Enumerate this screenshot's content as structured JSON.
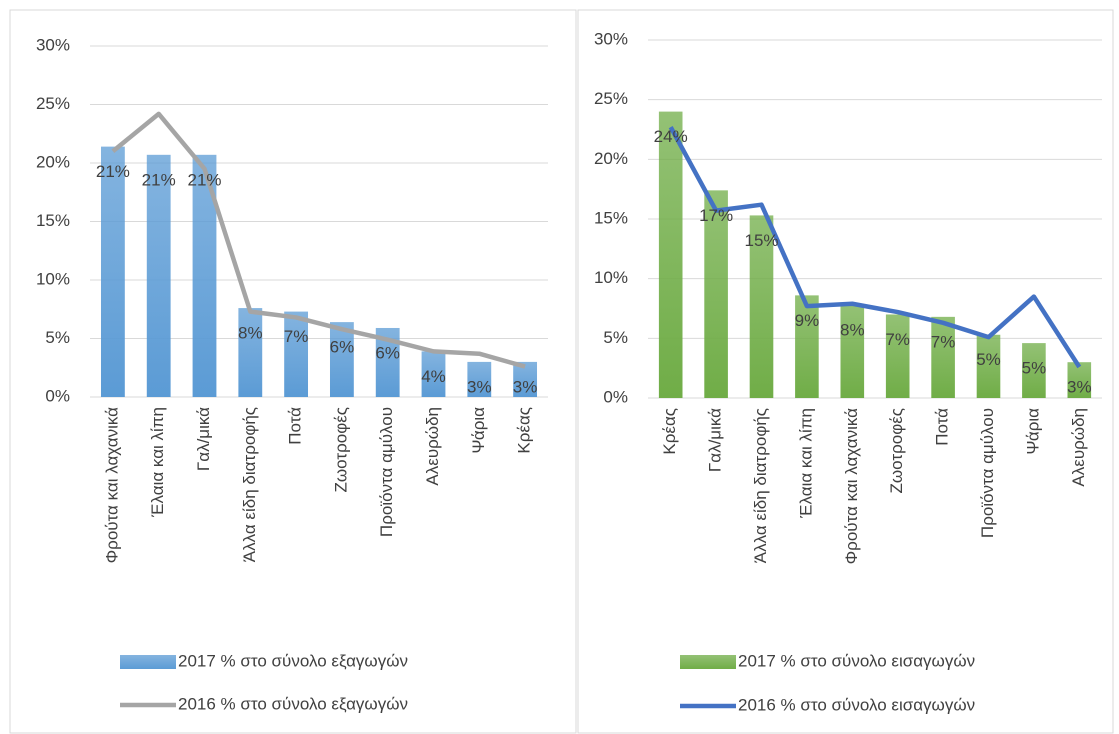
{
  "chart_data": [
    {
      "type": "combo",
      "categories": [
        "Φρούτα και λαχανικά",
        "Έλαια και λίπη",
        "Γαλ/μικά",
        "Άλλα είδη διατροφής",
        "Ποτά",
        "Ζωοτροφές",
        "Προϊόντα αμύλου",
        "Αλευρώδη",
        "Ψάρια",
        "Κρέας"
      ],
      "series": [
        {
          "name": "2017 % στο σύνολο εξαγωγών",
          "kind": "bar",
          "color": "#5b9bd5",
          "values": [
            21.4,
            20.7,
            20.7,
            7.6,
            7.3,
            6.4,
            5.9,
            3.9,
            3.0,
            3.0
          ],
          "value_labels": [
            "21%",
            "21%",
            "21%",
            "8%",
            "7%",
            "6%",
            "6%",
            "4%",
            "3%",
            "3%"
          ]
        },
        {
          "name": "2016 % στο σύνολο εξαγωγών",
          "kind": "line",
          "color": "#a5a5a5",
          "values": [
            21.0,
            24.2,
            19.5,
            7.3,
            6.8,
            5.8,
            4.9,
            3.9,
            3.7,
            2.6
          ]
        }
      ],
      "ylim": [
        0,
        30
      ],
      "yticks": [
        {
          "value": 0,
          "label": "0%"
        },
        {
          "value": 5,
          "label": "5%"
        },
        {
          "value": 10,
          "label": "10%"
        },
        {
          "value": 15,
          "label": "15%"
        },
        {
          "value": 20,
          "label": "20%"
        },
        {
          "value": 25,
          "label": "25%"
        },
        {
          "value": 30,
          "label": "30%"
        }
      ],
      "grid": true
    },
    {
      "type": "combo",
      "categories": [
        "Κρέας",
        "Γαλ/μικά",
        "Άλλα είδη διατροφής",
        "Έλαια και λίπη",
        "Φρούτα και λαχανικά",
        "Ζωοτροφές",
        "Ποτά",
        "Προϊόντα αμύλου",
        "Ψάρια",
        "Αλευρώδη"
      ],
      "series": [
        {
          "name": "2017 % στο σύνολο εισαγωγών",
          "kind": "bar",
          "color": "#70ad47",
          "values": [
            24.0,
            17.4,
            15.3,
            8.6,
            7.8,
            7.0,
            6.8,
            5.3,
            4.6,
            3.0
          ],
          "value_labels": [
            "24%",
            "17%",
            "15%",
            "9%",
            "8%",
            "7%",
            "7%",
            "5%",
            "5%",
            "3%"
          ]
        },
        {
          "name": "2016 % στο σύνολο εισαγωγών",
          "kind": "line",
          "color": "#4472c4",
          "values": [
            22.7,
            15.7,
            16.2,
            7.7,
            7.9,
            7.2,
            6.3,
            5.1,
            8.5,
            2.6
          ]
        }
      ],
      "ylim": [
        0,
        30
      ],
      "yticks": [
        {
          "value": 0,
          "label": "0%"
        },
        {
          "value": 5,
          "label": "5%"
        },
        {
          "value": 10,
          "label": "10%"
        },
        {
          "value": 15,
          "label": "15%"
        },
        {
          "value": 20,
          "label": "20%"
        },
        {
          "value": 25,
          "label": "25%"
        },
        {
          "value": 30,
          "label": "30%"
        }
      ],
      "grid": true
    }
  ]
}
